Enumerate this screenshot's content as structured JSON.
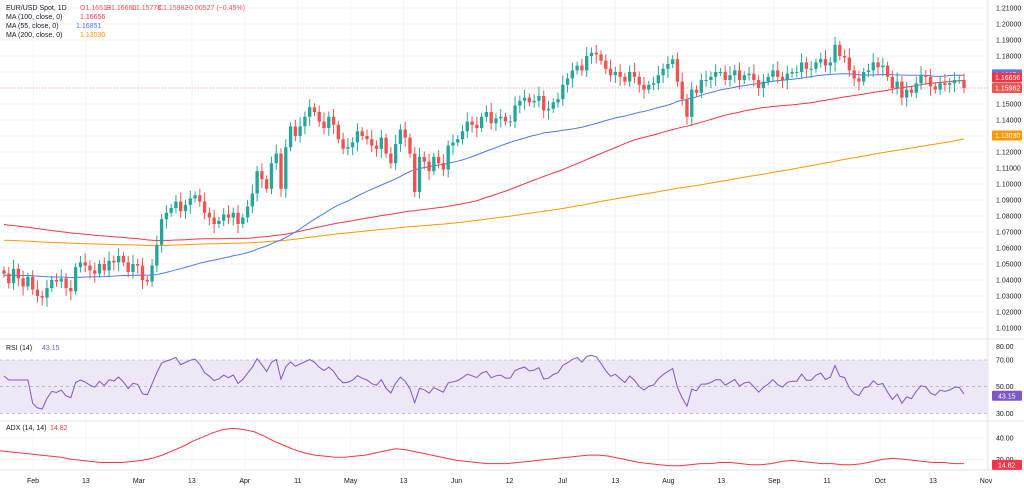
{
  "header": {
    "title": "EUR/USD Spot, 1D",
    "ohlc": {
      "open": "O1.16513",
      "high": "H1.16660",
      "low": "L1.15778",
      "close": "C1.15982",
      "change": "−0.00527 (−0.45%)"
    },
    "ma100": {
      "label": "MA (100, close, 0)",
      "value": "1.16656"
    },
    "ma55": {
      "label": "MA (55, close, 0)",
      "value": "1.16851"
    },
    "ma200": {
      "label": "MA (200, close, 0)",
      "value": "1.13030"
    }
  },
  "colors": {
    "up": "#26a69a",
    "down": "#ef5350",
    "ma100": "#f23645",
    "ma55": "#4b7bec",
    "ma200": "#ff9800",
    "rsi": "#7e57c2",
    "rsi_band": "#ede7f6",
    "adx": "#f23645"
  },
  "chart_data": [
    {
      "type": "candlestick",
      "name": "EUR/USD Spot, 1D",
      "ylim": [
        1.005,
        1.215
      ],
      "y_ticks": [
        "1.21000",
        "1.20000",
        "1.19000",
        "1.18000",
        "1.17000",
        "1.16000",
        "1.15000",
        "1.14000",
        "1.13000",
        "1.12000",
        "1.11000",
        "1.10000",
        "1.09000",
        "1.08000",
        "1.07000",
        "1.06000",
        "1.05000",
        "1.04000",
        "1.03000",
        "1.02000",
        "1.01000"
      ],
      "x_ticks": [
        "Feb",
        "13",
        "Mar",
        "13",
        "Apr",
        "11",
        "May",
        "13",
        "Jun",
        "12",
        "Jul",
        "13",
        "Aug",
        "13",
        "Sep",
        "11",
        "Oct",
        "13",
        "Nov"
      ],
      "closes": [
        1.044,
        1.038,
        1.047,
        1.041,
        1.036,
        1.042,
        1.034,
        1.03,
        1.029,
        1.035,
        1.04,
        1.039,
        1.041,
        1.035,
        1.033,
        1.048,
        1.051,
        1.049,
        1.046,
        1.044,
        1.05,
        1.046,
        1.052,
        1.051,
        1.055,
        1.051,
        1.045,
        1.05,
        1.049,
        1.04,
        1.039,
        1.049,
        1.062,
        1.078,
        1.082,
        1.085,
        1.089,
        1.083,
        1.087,
        1.091,
        1.093,
        1.089,
        1.082,
        1.079,
        1.075,
        1.077,
        1.081,
        1.079,
        1.082,
        1.075,
        1.079,
        1.086,
        1.094,
        1.108,
        1.103,
        1.097,
        1.113,
        1.119,
        1.097,
        1.123,
        1.136,
        1.13,
        1.136,
        1.142,
        1.148,
        1.145,
        1.139,
        1.135,
        1.142,
        1.137,
        1.128,
        1.122,
        1.123,
        1.126,
        1.133,
        1.13,
        1.128,
        1.124,
        1.122,
        1.129,
        1.119,
        1.113,
        1.125,
        1.134,
        1.129,
        1.119,
        1.095,
        1.117,
        1.114,
        1.108,
        1.117,
        1.113,
        1.109,
        1.124,
        1.126,
        1.128,
        1.133,
        1.139,
        1.137,
        1.135,
        1.142,
        1.145,
        1.138,
        1.141,
        1.142,
        1.139,
        1.139,
        1.149,
        1.152,
        1.154,
        1.151,
        1.152,
        1.155,
        1.146,
        1.147,
        1.151,
        1.153,
        1.162,
        1.166,
        1.171,
        1.174,
        1.171,
        1.18,
        1.182,
        1.181,
        1.177,
        1.172,
        1.168,
        1.17,
        1.167,
        1.164,
        1.17,
        1.167,
        1.162,
        1.159,
        1.162,
        1.163,
        1.168,
        1.172,
        1.175,
        1.178,
        1.164,
        1.153,
        1.142,
        1.159,
        1.157,
        1.165,
        1.165,
        1.167,
        1.17,
        1.17,
        1.165,
        1.168,
        1.171,
        1.165,
        1.168,
        1.169,
        1.165,
        1.16,
        1.164,
        1.167,
        1.171,
        1.167,
        1.165,
        1.169,
        1.17,
        1.17,
        1.176,
        1.172,
        1.172,
        1.176,
        1.178,
        1.174,
        1.176,
        1.187,
        1.18,
        1.179,
        1.171,
        1.166,
        1.164,
        1.17,
        1.171,
        1.176,
        1.173,
        1.174,
        1.167,
        1.16,
        1.164,
        1.154,
        1.159,
        1.157,
        1.163,
        1.168,
        1.167,
        1.161,
        1.159,
        1.163,
        1.162,
        1.163,
        1.165,
        1.165,
        1.16
      ],
      "ma_series": [
        {
          "name": "MA (100, close, 0)",
          "label_value": "1.16656"
        },
        {
          "name": "MA (55, close, 0)",
          "label_value": "1.16851"
        },
        {
          "name": "MA (200, close, 0)",
          "label_value": "1.13030"
        }
      ],
      "last_price_label": "1.15982"
    },
    {
      "type": "line",
      "name": "RSI (14)",
      "value_label": "43.15",
      "ylim": [
        25,
        85
      ],
      "y_ticks": [
        "80.00",
        "70.00",
        "50.00",
        "30.00"
      ],
      "band": [
        30,
        70
      ],
      "midline": 50
    },
    {
      "type": "line",
      "name": "ADX (14, 14)",
      "value_label": "14.82",
      "ylim": [
        10,
        55
      ],
      "y_ticks": [
        "40.00",
        "20.00"
      ],
      "values": [
        28,
        27,
        26,
        25,
        24,
        23,
        22,
        20,
        19,
        18,
        17,
        17,
        17,
        18,
        19,
        21,
        24,
        28,
        32,
        37,
        41,
        45,
        48,
        49,
        48,
        46,
        42,
        37,
        33,
        29,
        26,
        24,
        23,
        22,
        22,
        23,
        24,
        26,
        28,
        30,
        29,
        27,
        25,
        23,
        21,
        19,
        18,
        17,
        16,
        16,
        16,
        17,
        18,
        19,
        20,
        21,
        22,
        23,
        24,
        24,
        23,
        21,
        19,
        17,
        16,
        15,
        14,
        14,
        15,
        16,
        16,
        17,
        17,
        16,
        15,
        15,
        16,
        18,
        19,
        18,
        17,
        16,
        16,
        15,
        15,
        16,
        18,
        20,
        21,
        20,
        19,
        18,
        17,
        17,
        16,
        16
      ]
    }
  ]
}
